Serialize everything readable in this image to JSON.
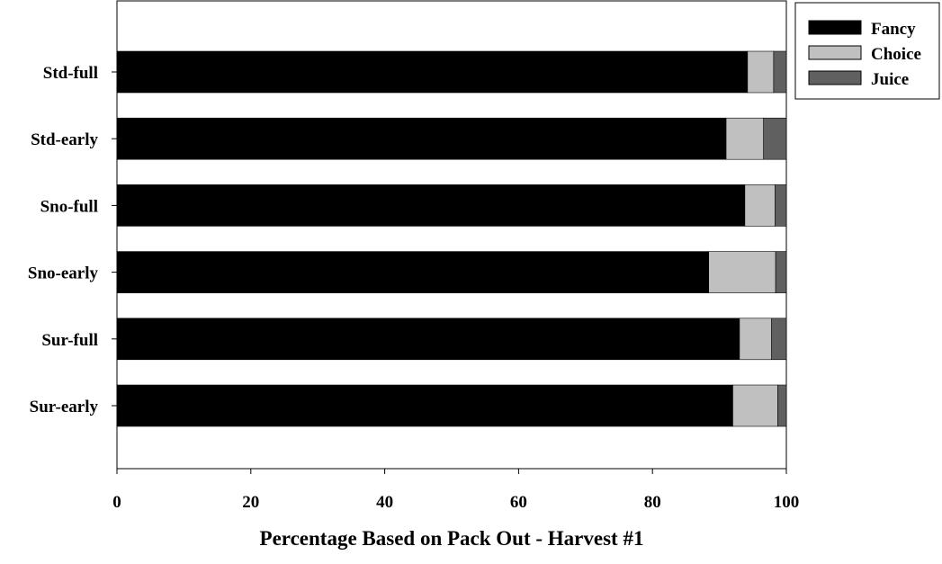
{
  "chart_data": {
    "type": "bar",
    "orientation": "horizontal",
    "stacked": true,
    "title": "",
    "xlabel": "Percentage Based on Pack Out - Harvest #1",
    "ylabel": "",
    "xlim": [
      0,
      100
    ],
    "xticks": [
      "0",
      "20",
      "40",
      "60",
      "80",
      "100"
    ],
    "categories": [
      "Std-full",
      "Std-early",
      "Sno-full",
      "Sno-early",
      "Sur-full",
      "Sur-early"
    ],
    "series": [
      {
        "name": "Fancy",
        "color": "#000000",
        "values": [
          94.2,
          91.0,
          93.8,
          88.4,
          93.0,
          92.0
        ]
      },
      {
        "name": "Choice",
        "color": "#c0c0c0",
        "values": [
          3.9,
          5.6,
          4.5,
          10.0,
          4.8,
          6.7
        ]
      },
      {
        "name": "Juice",
        "color": "#606060",
        "values": [
          1.9,
          3.4,
          1.7,
          1.6,
          2.2,
          1.3
        ]
      }
    ],
    "grid": false,
    "legend_position": "top-right"
  }
}
